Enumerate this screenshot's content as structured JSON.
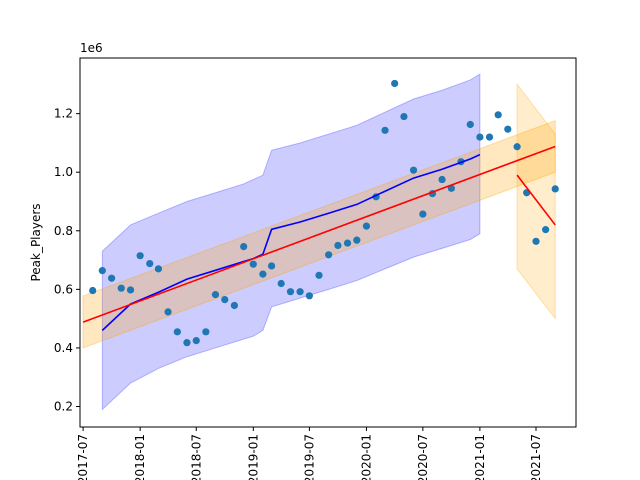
{
  "chart_data": {
    "type": "scatter",
    "title": "",
    "xlabel": "",
    "ylabel": "Peak_Players",
    "y_offset_label": "1e6",
    "x_tick_labels": [
      "2017-07",
      "2018-01",
      "2018-07",
      "2019-01",
      "2019-07",
      "2020-01",
      "2020-07",
      "2021-01",
      "2021-07"
    ],
    "x_tick_dates": [
      "2017-07-01",
      "2018-01-01",
      "2018-07-01",
      "2019-01-01",
      "2019-07-01",
      "2020-01-01",
      "2020-07-01",
      "2021-01-01",
      "2021-07-01"
    ],
    "y_tick_labels": [
      "0.2",
      "0.4",
      "0.6",
      "0.8",
      "1.0",
      "1.2"
    ],
    "y_tick_values": [
      0.2,
      0.4,
      0.6,
      0.8,
      1.0,
      1.2
    ],
    "xlim": [
      "2017-06-21",
      "2021-11-07"
    ],
    "ylim": [
      0.13,
      1.39
    ],
    "grid": false,
    "colors": {
      "points": "#1f77b4",
      "fit_line_1": "#0000ff",
      "band_1": "#0000ff",
      "trend_line": "#ff0000",
      "trend_band": "#ffa500",
      "fit_line_2": "#ff0000",
      "band_2": "#ffa500"
    },
    "series": [
      {
        "kind": "points",
        "x": [
          "2017-08-01",
          "2017-09-01",
          "2017-10-01",
          "2017-11-01",
          "2017-12-01",
          "2018-01-01",
          "2018-02-01",
          "2018-03-01",
          "2018-04-01",
          "2018-05-01",
          "2018-06-01",
          "2018-07-01",
          "2018-08-01",
          "2018-09-01",
          "2018-10-01",
          "2018-11-01",
          "2018-12-01",
          "2019-01-01",
          "2019-02-01",
          "2019-03-01",
          "2019-04-01",
          "2019-05-01",
          "2019-06-01",
          "2019-07-01",
          "2019-08-01",
          "2019-09-01",
          "2019-10-01",
          "2019-11-01",
          "2019-12-01",
          "2020-01-01",
          "2020-02-01",
          "2020-03-01",
          "2020-04-01",
          "2020-05-01",
          "2020-06-01",
          "2020-07-01",
          "2020-08-01",
          "2020-09-01",
          "2020-10-01",
          "2020-11-01",
          "2020-12-01",
          "2021-01-01",
          "2021-02-01",
          "2021-03-01",
          "2021-04-01",
          "2021-05-01",
          "2021-06-01",
          "2021-07-01",
          "2021-08-01",
          "2021-09-01"
        ],
        "y": [
          0.596,
          0.664,
          0.638,
          0.604,
          0.598,
          0.715,
          0.688,
          0.67,
          0.523,
          0.455,
          0.418,
          0.425,
          0.455,
          0.582,
          0.565,
          0.545,
          0.746,
          0.686,
          0.652,
          0.68,
          0.62,
          0.592,
          0.592,
          0.578,
          0.648,
          0.718,
          0.75,
          0.758,
          0.768,
          0.816,
          0.916,
          1.143,
          1.303,
          1.19,
          1.007,
          0.857,
          0.927,
          0.975,
          0.945,
          1.036,
          1.163,
          1.12,
          1.12,
          1.196,
          1.147,
          1.087,
          0.93,
          0.764,
          0.804,
          0.943
        ]
      },
      {
        "kind": "line",
        "x": [
          "2017-09-01",
          "2017-12-01",
          "2018-03-01",
          "2018-06-01",
          "2018-09-01",
          "2018-12-01",
          "2019-01-01",
          "2019-02-01",
          "2019-03-01",
          "2019-06-01",
          "2019-09-01",
          "2019-12-01",
          "2020-03-01",
          "2020-06-01",
          "2020-09-01",
          "2020-12-01",
          "2021-01-01"
        ],
        "y": [
          0.46,
          0.55,
          0.59,
          0.635,
          0.665,
          0.695,
          0.705,
          0.72,
          0.805,
          0.83,
          0.86,
          0.89,
          0.935,
          0.98,
          1.01,
          1.045,
          1.06
        ]
      },
      {
        "kind": "band",
        "x": [
          "2017-09-01",
          "2017-12-01",
          "2018-03-01",
          "2018-06-01",
          "2018-09-01",
          "2018-12-01",
          "2019-01-01",
          "2019-02-01",
          "2019-03-01",
          "2019-06-01",
          "2019-09-01",
          "2019-12-01",
          "2020-03-01",
          "2020-06-01",
          "2020-09-01",
          "2020-12-01",
          "2021-01-01"
        ],
        "lower": [
          0.19,
          0.28,
          0.33,
          0.37,
          0.4,
          0.43,
          0.44,
          0.46,
          0.54,
          0.57,
          0.6,
          0.63,
          0.67,
          0.71,
          0.74,
          0.77,
          0.79
        ],
        "upper": [
          0.73,
          0.82,
          0.86,
          0.9,
          0.93,
          0.96,
          0.975,
          0.99,
          1.075,
          1.1,
          1.13,
          1.16,
          1.205,
          1.25,
          1.28,
          1.315,
          1.335
        ]
      },
      {
        "kind": "line",
        "x": [
          "2017-07-01",
          "2021-09-01"
        ],
        "y": [
          0.488,
          1.088
        ]
      },
      {
        "kind": "band",
        "x": [
          "2017-07-01",
          "2021-09-01"
        ],
        "lower": [
          0.4,
          1.0
        ],
        "upper": [
          0.577,
          1.176
        ]
      },
      {
        "kind": "line",
        "x": [
          "2021-05-01",
          "2021-09-01"
        ],
        "y": [
          0.99,
          0.82
        ]
      },
      {
        "kind": "band",
        "x": [
          "2021-05-01",
          "2021-09-01"
        ],
        "lower": [
          0.67,
          0.5
        ],
        "upper": [
          1.3,
          1.13
        ]
      }
    ]
  }
}
